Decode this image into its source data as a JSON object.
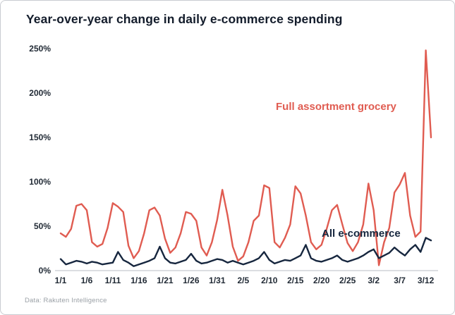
{
  "chart_data": {
    "type": "line",
    "title": "Year-over-year change in daily e-commerce spending",
    "source": "Data: Rakuten Intelligence",
    "xlabel": "",
    "ylabel": "",
    "ylim": [
      0,
      250
    ],
    "y_ticks": [
      0,
      50,
      100,
      150,
      200,
      250
    ],
    "y_tick_suffix": "%",
    "x_tick_every": 5,
    "x_tick_labels": [
      "1/1",
      "1/6",
      "1/11",
      "1/16",
      "1/21",
      "1/26",
      "1/31",
      "2/5",
      "2/10",
      "2/15",
      "2/20",
      "2/25",
      "3/2",
      "3/7",
      "3/12"
    ],
    "grid": false,
    "legend_position": "inline-annotations",
    "x": [
      "1/1",
      "1/2",
      "1/3",
      "1/4",
      "1/5",
      "1/6",
      "1/7",
      "1/8",
      "1/9",
      "1/10",
      "1/11",
      "1/12",
      "1/13",
      "1/14",
      "1/15",
      "1/16",
      "1/17",
      "1/18",
      "1/19",
      "1/20",
      "1/21",
      "1/22",
      "1/23",
      "1/24",
      "1/25",
      "1/26",
      "1/27",
      "1/28",
      "1/29",
      "1/30",
      "1/31",
      "2/1",
      "2/2",
      "2/3",
      "2/4",
      "2/5",
      "2/6",
      "2/7",
      "2/8",
      "2/9",
      "2/10",
      "2/11",
      "2/12",
      "2/13",
      "2/14",
      "2/15",
      "2/16",
      "2/17",
      "2/18",
      "2/19",
      "2/20",
      "2/21",
      "2/22",
      "2/23",
      "2/24",
      "2/25",
      "2/26",
      "2/27",
      "2/28",
      "3/1",
      "3/2",
      "3/3",
      "3/4",
      "3/5",
      "3/6",
      "3/7",
      "3/8",
      "3/9",
      "3/10",
      "3/11",
      "3/12",
      "3/13"
    ],
    "series": [
      {
        "name": "Full assortment grocery",
        "color": "#e05c51",
        "values": [
          42,
          38,
          47,
          73,
          75,
          68,
          32,
          27,
          30,
          48,
          76,
          72,
          66,
          28,
          14,
          22,
          42,
          68,
          71,
          62,
          36,
          20,
          26,
          42,
          66,
          64,
          56,
          26,
          17,
          32,
          57,
          91,
          62,
          27,
          11,
          16,
          32,
          56,
          62,
          96,
          93,
          32,
          26,
          37,
          52,
          95,
          87,
          62,
          32,
          24,
          29,
          47,
          68,
          74,
          52,
          31,
          22,
          32,
          52,
          98,
          68,
          6,
          32,
          48,
          88,
          97,
          110,
          62,
          38,
          44,
          248,
          150
        ]
      },
      {
        "name": "All e-commerce",
        "color": "#16263e",
        "values": [
          13,
          7,
          9,
          11,
          10,
          8,
          10,
          9,
          7,
          8,
          9,
          21,
          12,
          9,
          5,
          7,
          9,
          11,
          14,
          27,
          14,
          9,
          8,
          10,
          12,
          19,
          11,
          8,
          9,
          11,
          13,
          12,
          9,
          11,
          9,
          7,
          9,
          11,
          14,
          21,
          12,
          8,
          10,
          12,
          11,
          14,
          17,
          29,
          14,
          11,
          10,
          12,
          14,
          17,
          12,
          10,
          12,
          14,
          17,
          21,
          24,
          14,
          17,
          20,
          26,
          21,
          17,
          24,
          29,
          21,
          37,
          34
        ]
      }
    ]
  }
}
